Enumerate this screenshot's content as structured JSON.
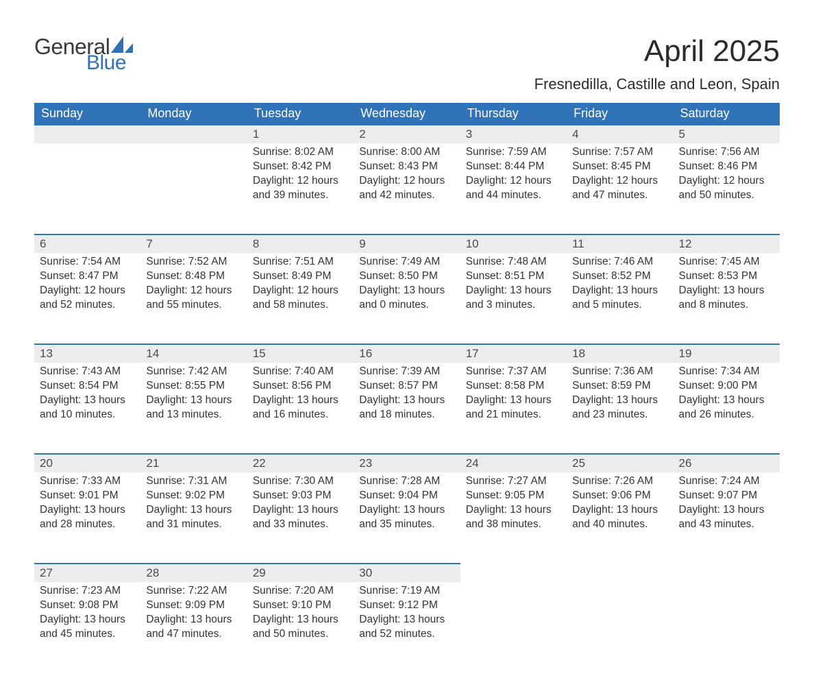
{
  "brand": {
    "word1": "General",
    "word2": "Blue",
    "sail_color": "#2f70b6"
  },
  "title": "April 2025",
  "location": "Fresnedilla, Castille and Leon, Spain",
  "colors": {
    "header_bg": "#3173b8",
    "header_text": "#ffffff",
    "daynum_bg": "#ececec",
    "daynum_border": "#3173b8",
    "body_text": "#333333",
    "page_bg": "#ffffff"
  },
  "weekdays": [
    "Sunday",
    "Monday",
    "Tuesday",
    "Wednesday",
    "Thursday",
    "Friday",
    "Saturday"
  ],
  "weeks": [
    [
      null,
      null,
      {
        "n": "1",
        "sunrise": "Sunrise: 8:02 AM",
        "sunset": "Sunset: 8:42 PM",
        "d1": "Daylight: 12 hours",
        "d2": "and 39 minutes."
      },
      {
        "n": "2",
        "sunrise": "Sunrise: 8:00 AM",
        "sunset": "Sunset: 8:43 PM",
        "d1": "Daylight: 12 hours",
        "d2": "and 42 minutes."
      },
      {
        "n": "3",
        "sunrise": "Sunrise: 7:59 AM",
        "sunset": "Sunset: 8:44 PM",
        "d1": "Daylight: 12 hours",
        "d2": "and 44 minutes."
      },
      {
        "n": "4",
        "sunrise": "Sunrise: 7:57 AM",
        "sunset": "Sunset: 8:45 PM",
        "d1": "Daylight: 12 hours",
        "d2": "and 47 minutes."
      },
      {
        "n": "5",
        "sunrise": "Sunrise: 7:56 AM",
        "sunset": "Sunset: 8:46 PM",
        "d1": "Daylight: 12 hours",
        "d2": "and 50 minutes."
      }
    ],
    [
      {
        "n": "6",
        "sunrise": "Sunrise: 7:54 AM",
        "sunset": "Sunset: 8:47 PM",
        "d1": "Daylight: 12 hours",
        "d2": "and 52 minutes."
      },
      {
        "n": "7",
        "sunrise": "Sunrise: 7:52 AM",
        "sunset": "Sunset: 8:48 PM",
        "d1": "Daylight: 12 hours",
        "d2": "and 55 minutes."
      },
      {
        "n": "8",
        "sunrise": "Sunrise: 7:51 AM",
        "sunset": "Sunset: 8:49 PM",
        "d1": "Daylight: 12 hours",
        "d2": "and 58 minutes."
      },
      {
        "n": "9",
        "sunrise": "Sunrise: 7:49 AM",
        "sunset": "Sunset: 8:50 PM",
        "d1": "Daylight: 13 hours",
        "d2": "and 0 minutes."
      },
      {
        "n": "10",
        "sunrise": "Sunrise: 7:48 AM",
        "sunset": "Sunset: 8:51 PM",
        "d1": "Daylight: 13 hours",
        "d2": "and 3 minutes."
      },
      {
        "n": "11",
        "sunrise": "Sunrise: 7:46 AM",
        "sunset": "Sunset: 8:52 PM",
        "d1": "Daylight: 13 hours",
        "d2": "and 5 minutes."
      },
      {
        "n": "12",
        "sunrise": "Sunrise: 7:45 AM",
        "sunset": "Sunset: 8:53 PM",
        "d1": "Daylight: 13 hours",
        "d2": "and 8 minutes."
      }
    ],
    [
      {
        "n": "13",
        "sunrise": "Sunrise: 7:43 AM",
        "sunset": "Sunset: 8:54 PM",
        "d1": "Daylight: 13 hours",
        "d2": "and 10 minutes."
      },
      {
        "n": "14",
        "sunrise": "Sunrise: 7:42 AM",
        "sunset": "Sunset: 8:55 PM",
        "d1": "Daylight: 13 hours",
        "d2": "and 13 minutes."
      },
      {
        "n": "15",
        "sunrise": "Sunrise: 7:40 AM",
        "sunset": "Sunset: 8:56 PM",
        "d1": "Daylight: 13 hours",
        "d2": "and 16 minutes."
      },
      {
        "n": "16",
        "sunrise": "Sunrise: 7:39 AM",
        "sunset": "Sunset: 8:57 PM",
        "d1": "Daylight: 13 hours",
        "d2": "and 18 minutes."
      },
      {
        "n": "17",
        "sunrise": "Sunrise: 7:37 AM",
        "sunset": "Sunset: 8:58 PM",
        "d1": "Daylight: 13 hours",
        "d2": "and 21 minutes."
      },
      {
        "n": "18",
        "sunrise": "Sunrise: 7:36 AM",
        "sunset": "Sunset: 8:59 PM",
        "d1": "Daylight: 13 hours",
        "d2": "and 23 minutes."
      },
      {
        "n": "19",
        "sunrise": "Sunrise: 7:34 AM",
        "sunset": "Sunset: 9:00 PM",
        "d1": "Daylight: 13 hours",
        "d2": "and 26 minutes."
      }
    ],
    [
      {
        "n": "20",
        "sunrise": "Sunrise: 7:33 AM",
        "sunset": "Sunset: 9:01 PM",
        "d1": "Daylight: 13 hours",
        "d2": "and 28 minutes."
      },
      {
        "n": "21",
        "sunrise": "Sunrise: 7:31 AM",
        "sunset": "Sunset: 9:02 PM",
        "d1": "Daylight: 13 hours",
        "d2": "and 31 minutes."
      },
      {
        "n": "22",
        "sunrise": "Sunrise: 7:30 AM",
        "sunset": "Sunset: 9:03 PM",
        "d1": "Daylight: 13 hours",
        "d2": "and 33 minutes."
      },
      {
        "n": "23",
        "sunrise": "Sunrise: 7:28 AM",
        "sunset": "Sunset: 9:04 PM",
        "d1": "Daylight: 13 hours",
        "d2": "and 35 minutes."
      },
      {
        "n": "24",
        "sunrise": "Sunrise: 7:27 AM",
        "sunset": "Sunset: 9:05 PM",
        "d1": "Daylight: 13 hours",
        "d2": "and 38 minutes."
      },
      {
        "n": "25",
        "sunrise": "Sunrise: 7:26 AM",
        "sunset": "Sunset: 9:06 PM",
        "d1": "Daylight: 13 hours",
        "d2": "and 40 minutes."
      },
      {
        "n": "26",
        "sunrise": "Sunrise: 7:24 AM",
        "sunset": "Sunset: 9:07 PM",
        "d1": "Daylight: 13 hours",
        "d2": "and 43 minutes."
      }
    ],
    [
      {
        "n": "27",
        "sunrise": "Sunrise: 7:23 AM",
        "sunset": "Sunset: 9:08 PM",
        "d1": "Daylight: 13 hours",
        "d2": "and 45 minutes."
      },
      {
        "n": "28",
        "sunrise": "Sunrise: 7:22 AM",
        "sunset": "Sunset: 9:09 PM",
        "d1": "Daylight: 13 hours",
        "d2": "and 47 minutes."
      },
      {
        "n": "29",
        "sunrise": "Sunrise: 7:20 AM",
        "sunset": "Sunset: 9:10 PM",
        "d1": "Daylight: 13 hours",
        "d2": "and 50 minutes."
      },
      {
        "n": "30",
        "sunrise": "Sunrise: 7:19 AM",
        "sunset": "Sunset: 9:12 PM",
        "d1": "Daylight: 13 hours",
        "d2": "and 52 minutes."
      },
      null,
      null,
      null
    ]
  ]
}
